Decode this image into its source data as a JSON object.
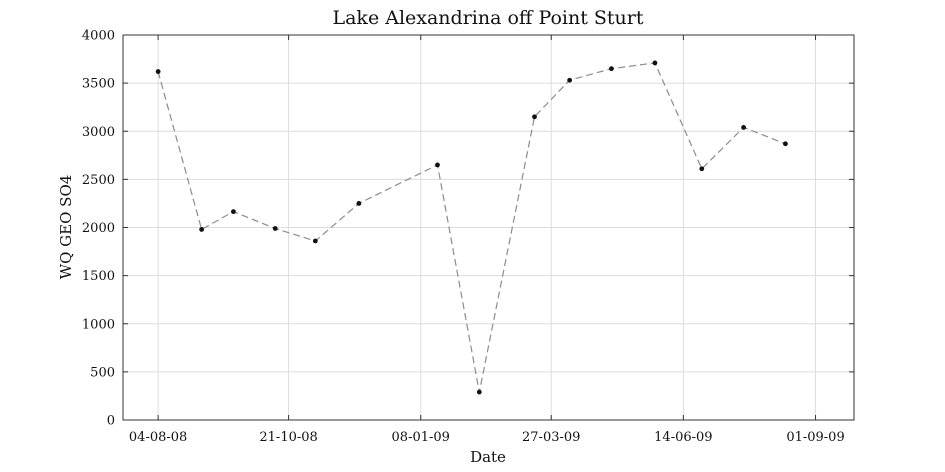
{
  "chart_data": {
    "type": "line",
    "title": "Lake Alexandrina off Point Sturt",
    "xlabel": "Date",
    "ylabel": "WQ GEO SO4",
    "ylim": [
      0,
      4000
    ],
    "xlim": [
      "2008-07-14",
      "2009-09-24"
    ],
    "grid": true,
    "x_tick_labels": [
      {
        "label": "04-08-08",
        "date": "2008-08-04"
      },
      {
        "label": "21-10-08",
        "date": "2008-10-21"
      },
      {
        "label": "08-01-09",
        "date": "2009-01-08"
      },
      {
        "label": "27-03-09",
        "date": "2009-03-27"
      },
      {
        "label": "14-06-09",
        "date": "2009-06-14"
      },
      {
        "label": "01-09-09",
        "date": "2009-09-01"
      }
    ],
    "y_ticks": [
      0,
      500,
      1000,
      1500,
      2000,
      2500,
      3000,
      3500,
      4000
    ],
    "series": [
      {
        "color": "#8c8c8c",
        "marker_color": "#111111",
        "line_style": "dashed",
        "x": [
          "2008-08-04",
          "2008-08-30",
          "2008-09-18",
          "2008-10-13",
          "2008-11-06",
          "2008-12-02",
          "2009-01-18",
          "2009-02-12",
          "2009-03-17",
          "2009-04-07",
          "2009-05-02",
          "2009-05-28",
          "2009-06-25",
          "2009-07-20",
          "2009-08-14"
        ],
        "y": [
          3620,
          1980,
          2165,
          1990,
          1860,
          2250,
          2650,
          290,
          3150,
          3530,
          3650,
          3710,
          2610,
          3040,
          2870
        ]
      }
    ]
  }
}
